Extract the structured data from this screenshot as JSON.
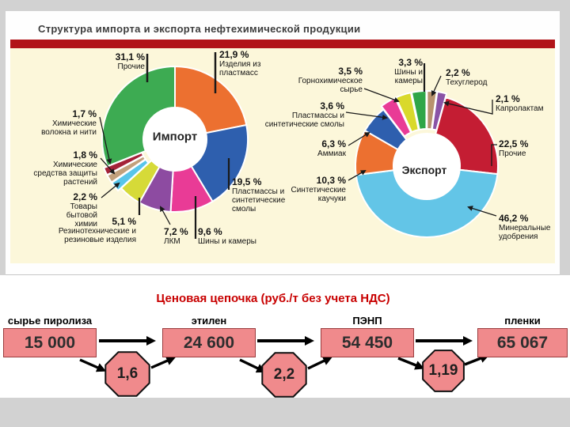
{
  "header": {
    "title": "Структура импорта и экспорта нефтехимической продукции"
  },
  "chart_data": [
    {
      "type": "pie",
      "donut": true,
      "title": "Импорт",
      "unit": "%",
      "legend_position": "around",
      "segments": [
        {
          "label": "Изделия из пластмасс",
          "pct": "21,9 %",
          "value": 21.9,
          "color": "#ec7030"
        },
        {
          "label": "Пластмассы и синтетические смолы",
          "pct": "19,5 %",
          "value": 19.5,
          "color": "#2e5fae"
        },
        {
          "label": "Шины и камеры",
          "pct": "9,6 %",
          "value": 9.6,
          "color": "#e93b96"
        },
        {
          "label": "ЛКМ",
          "pct": "7,2 %",
          "value": 7.2,
          "color": "#8d4ba1"
        },
        {
          "label": "Резинотехнические и резиновые изделия",
          "pct": "5,1 %",
          "value": 5.1,
          "color": "#d6da38"
        },
        {
          "label": "Товары бытовой химии",
          "pct": "2,2 %",
          "value": 2.2,
          "color": "#58c5ea"
        },
        {
          "label": "Химические средства защиты растений",
          "pct": "1,8 %",
          "value": 1.8,
          "color": "#c2a07c"
        },
        {
          "label": "Химические волокна и нити",
          "pct": "1,7 %",
          "value": 1.7,
          "color": "#a42238"
        },
        {
          "label": "Прочие",
          "pct": "31,1 %",
          "value": 31.1,
          "color": "#3dab52"
        }
      ]
    },
    {
      "type": "pie",
      "donut": true,
      "title": "Экспорт",
      "unit": "%",
      "legend_position": "around",
      "segments": [
        {
          "label": "Техуглерод",
          "pct": "2,2 %",
          "value": 2.2,
          "color": "#b8926e"
        },
        {
          "label": "Капролактам",
          "pct": "2,1 %",
          "value": 2.1,
          "color": "#8a53a6"
        },
        {
          "label": "Прочие",
          "pct": "22,5 %",
          "value": 22.5,
          "color": "#c41d33"
        },
        {
          "label": "Минеральные удобрения",
          "pct": "46,2 %",
          "value": 46.2,
          "color": "#63c5e7"
        },
        {
          "label": "Синтетические каучуки",
          "pct": "10,3 %",
          "value": 10.3,
          "color": "#ec7030"
        },
        {
          "label": "Аммиак",
          "pct": "6,3 %",
          "value": 6.3,
          "color": "#2e5fae"
        },
        {
          "label": "Пластмассы и синтетические смолы",
          "pct": "3,6 %",
          "value": 3.6,
          "color": "#e93b96"
        },
        {
          "label": "Горнохимическое сырье",
          "pct": "3,5 %",
          "value": 3.5,
          "color": "#d9d92b"
        },
        {
          "label": "Шины и камеры",
          "pct": "3,3 %",
          "value": 3.3,
          "color": "#2fa648"
        }
      ]
    }
  ],
  "price_chain": {
    "title": "Ценовая цепочка (руб./т без учета НДС)",
    "nodes": [
      {
        "label": "сырье пиролиза",
        "value": "15 000"
      },
      {
        "label": "этилен",
        "value": "24 600"
      },
      {
        "label": "ПЭНП",
        "value": "54 450"
      },
      {
        "label": "пленки",
        "value": "65 067"
      }
    ],
    "multipliers": [
      "1,6",
      "2,2",
      "1,19"
    ]
  },
  "colors": {
    "page_bg": "#d2d2d2",
    "panel_bg": "#ffffff",
    "accent_bar": "#b11318",
    "chart_bg": "#fcf7da",
    "price_title": "#c80000",
    "price_box_fill": "#f08a8c",
    "price_box_border": "#9a3b3d"
  }
}
